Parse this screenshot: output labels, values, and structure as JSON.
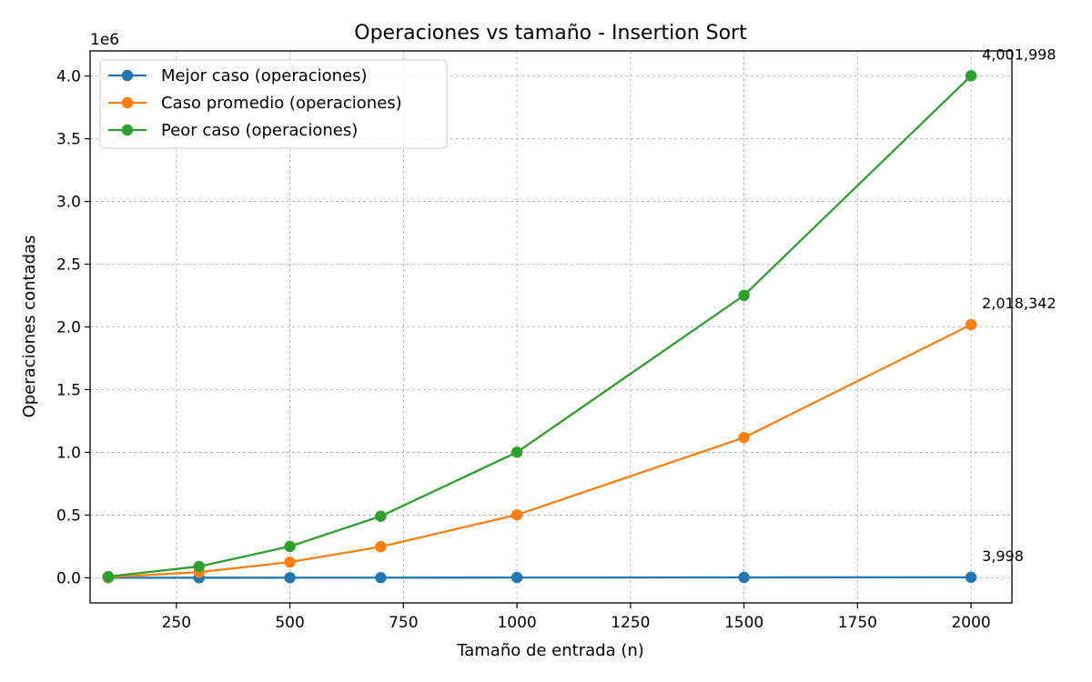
{
  "chart_data": {
    "type": "line",
    "title": "Operaciones vs tamaño - Insertion Sort",
    "xlabel": "Tamaño de entrada (n)",
    "ylabel": "Operaciones contadas",
    "y_offset_label": "1e6",
    "x": [
      100,
      300,
      500,
      700,
      1000,
      1500,
      2000
    ],
    "xlim": [
      60,
      2090
    ],
    "ylim": [
      -200000,
      4200000
    ],
    "x_ticks": [
      250,
      500,
      750,
      1000,
      1250,
      1500,
      1750,
      2000
    ],
    "x_tick_labels": [
      "250",
      "500",
      "750",
      "1000",
      "1250",
      "1500",
      "1750",
      "2000"
    ],
    "y_ticks": [
      0,
      500000,
      1000000,
      1500000,
      2000000,
      2500000,
      3000000,
      3500000,
      4000000
    ],
    "y_tick_labels": [
      "0.0",
      "0.5",
      "1.0",
      "1.5",
      "2.0",
      "2.5",
      "3.0",
      "3.5",
      "4.0"
    ],
    "grid": true,
    "legend_position": "top-left",
    "series": [
      {
        "name": "Mejor caso (operaciones)",
        "color": "#1f77b4",
        "values": [
          198,
          598,
          998,
          1398,
          1998,
          2998,
          3998
        ]
      },
      {
        "name": "Caso promedio (operaciones)",
        "color": "#ff7f0e",
        "values": [
          5200,
          45000,
          125000,
          248000,
          502000,
          1118000,
          2018342
        ]
      },
      {
        "name": "Peor caso (operaciones)",
        "color": "#2ca02c",
        "values": [
          10098,
          90298,
          250498,
          490698,
          1000998,
          2251498,
          4001998
        ]
      }
    ],
    "annotations": [
      {
        "text": "4,001,998",
        "x": 2000,
        "y": 4001998
      },
      {
        "text": "2,018,342",
        "x": 2000,
        "y": 2018342
      },
      {
        "text": "3,998",
        "x": 2000,
        "y": 3998
      }
    ]
  }
}
